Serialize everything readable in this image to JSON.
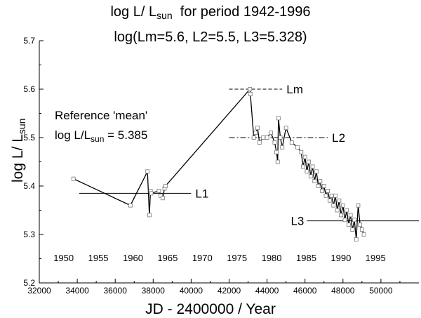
{
  "chart_data": {
    "type": "scatter",
    "title": {
      "line1_prefix": "log L/ L",
      "line1_sub": "sun",
      "line1_suffix": "for period 1942-1996",
      "line2": "log(Lm=5.6, L2=5.5, L3=5.328)"
    },
    "xlabel": "JD - 2400000 / Year",
    "ylabel_main": "log L/ L",
    "ylabel_sub": "sun",
    "xlim": [
      32000,
      52000
    ],
    "ylim": [
      5.2,
      5.7
    ],
    "x_ticks": [
      32000,
      34000,
      36000,
      38000,
      40000,
      42000,
      44000,
      46000,
      48000,
      50000
    ],
    "x_tick_labels": [
      "32000",
      "34000",
      "36000",
      "38000",
      "40000",
      "42000",
      "44000",
      "46000",
      "48000",
      "50000"
    ],
    "y_ticks": [
      5.2,
      5.3,
      5.4,
      5.5,
      5.6,
      5.7
    ],
    "y_tick_labels": [
      "5.2",
      "5.3",
      "5.4",
      "5.5",
      "5.6",
      "5.7"
    ],
    "year_labels": [
      {
        "text": "1950",
        "jd": 33282
      },
      {
        "text": "1955",
        "jd": 35108
      },
      {
        "text": "1960",
        "jd": 36934
      },
      {
        "text": "1965",
        "jd": 38761
      },
      {
        "text": "1970",
        "jd": 40587
      },
      {
        "text": "1975",
        "jd": 42413
      },
      {
        "text": "1980",
        "jd": 44239
      },
      {
        "text": "1985",
        "jd": 46066
      },
      {
        "text": "1990",
        "jd": 47892
      },
      {
        "text": "1995",
        "jd": 49718
      }
    ],
    "reference_lines": [
      {
        "name": "L1",
        "y": 5.385,
        "x_range": [
          34100,
          40000
        ],
        "style": "solid"
      },
      {
        "name": "Lm",
        "y": 5.6,
        "x_range": [
          42000,
          44800
        ],
        "style": "dashed"
      },
      {
        "name": "L2",
        "y": 5.5,
        "x_range": [
          42000,
          47200
        ],
        "style": "dashdot"
      },
      {
        "name": "L3",
        "y": 5.328,
        "x_range": [
          46100,
          52000
        ],
        "style": "solid"
      }
    ],
    "series": [
      {
        "name": "observations",
        "x": [
          33800,
          36800,
          37700,
          37800,
          37860,
          37900,
          38300,
          38400,
          38500,
          38600,
          38650,
          43100,
          43120,
          43300,
          43400,
          43500,
          43600,
          43800,
          44000,
          44200,
          44400,
          44500,
          44560,
          44600,
          44700,
          44800,
          45000,
          45300,
          45600,
          45800,
          45900,
          46000,
          46100,
          46200,
          46300,
          46400,
          46500,
          46600,
          46700,
          46800,
          46900,
          47000,
          47100,
          47200,
          47300,
          47400,
          47500,
          47600,
          47700,
          47800,
          47900,
          48000,
          48100,
          48200,
          48300,
          48400,
          48500,
          48600,
          48700,
          48800,
          48900,
          49000,
          49100
        ],
        "y": [
          5.415,
          5.36,
          5.43,
          5.34,
          5.39,
          5.385,
          5.39,
          5.38,
          5.375,
          5.395,
          5.4,
          5.6,
          5.59,
          5.5,
          5.51,
          5.52,
          5.49,
          5.5,
          5.5,
          5.51,
          5.49,
          5.47,
          5.45,
          5.54,
          5.5,
          5.48,
          5.52,
          5.49,
          5.48,
          5.47,
          5.44,
          5.46,
          5.43,
          5.45,
          5.42,
          5.44,
          5.41,
          5.43,
          5.4,
          5.41,
          5.39,
          5.4,
          5.38,
          5.39,
          5.37,
          5.38,
          5.36,
          5.38,
          5.35,
          5.37,
          5.34,
          5.36,
          5.33,
          5.35,
          5.32,
          5.34,
          5.31,
          5.33,
          5.29,
          5.36,
          5.32,
          5.31,
          5.3
        ]
      }
    ],
    "annotation": {
      "line1": "Reference 'mean'",
      "line2_prefix": "log L/L",
      "line2_sub": "sun",
      "line2_suffix": "= 5.385"
    }
  }
}
